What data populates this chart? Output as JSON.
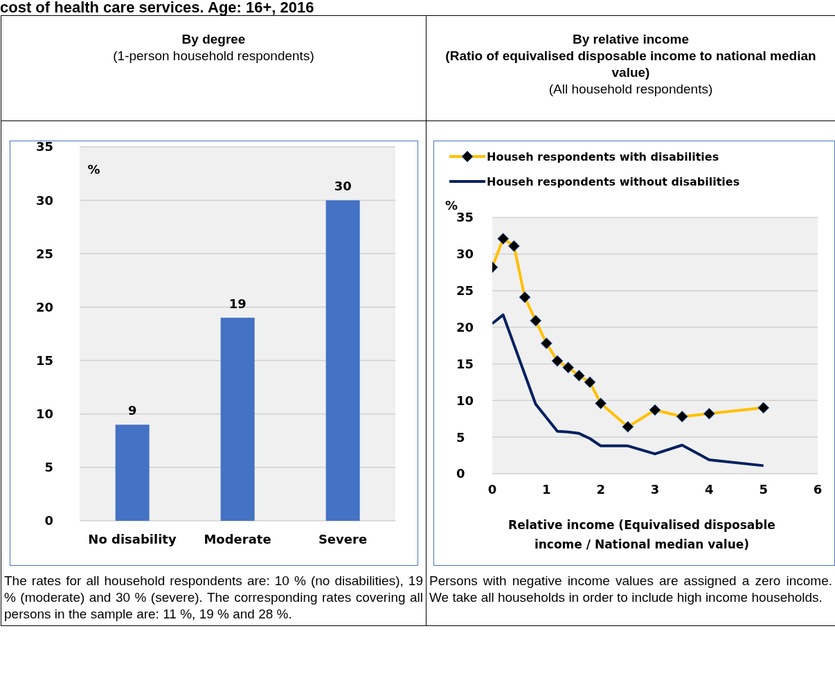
{
  "chart_data": [
    {
      "type": "bar",
      "title": "By degree",
      "subtitle": "(1-person household respondents)",
      "ylabel": "%",
      "categories": [
        "No disability",
        "Moderate",
        "Severe"
      ],
      "values": [
        9,
        19,
        30
      ],
      "color": "#4472c4",
      "data_labels": true,
      "ylim": [
        0,
        35
      ],
      "yticks": [
        0,
        5,
        10,
        15,
        20,
        25,
        30,
        35
      ],
      "grid": "y",
      "annotations": [
        "cost of health care services. Age: 16+, 2016",
        "The rates for all household respondents are: 10 % (no disabilities), 19 % (moderate) and 30 % (severe). The corresponding rates covering all persons in the sample are: 11 %, 19 % and 28 %."
      ]
    },
    {
      "type": "line",
      "title": "By relative income",
      "subtitle": "(Ratio of equivalised disposable income to national median value)",
      "ylabel": "%",
      "xlabel": "Relative income (Equivalised disposable income / National median value)",
      "legend": "top",
      "grid": "y",
      "xlim": [
        0,
        6
      ],
      "xticks": [
        0,
        1,
        2,
        3,
        4,
        5,
        6
      ],
      "ylim": [
        0,
        35
      ],
      "yticks": [
        0,
        5,
        10,
        15,
        20,
        25,
        30,
        35
      ],
      "series": [
        {
          "name": "Househ respondents with disabilities",
          "color": "#ffc000",
          "marker": "diamond",
          "x": [
            0,
            0.2,
            0.4,
            0.6,
            0.8,
            1.0,
            1.2,
            1.4,
            1.6,
            1.8,
            2.0,
            2.5,
            3.0,
            3.5,
            4.0,
            5.0
          ],
          "values": [
            28.2,
            32.1,
            31.1,
            24.1,
            20.9,
            17.8,
            15.4,
            14.5,
            13.4,
            12.5,
            9.6,
            6.4,
            8.7,
            7.8,
            8.2,
            9.0
          ]
        },
        {
          "name": "Househ respondents without disabilities",
          "color": "#002060",
          "marker": "none",
          "x": [
            0,
            0.2,
            0.8,
            1.2,
            1.4,
            1.6,
            1.8,
            2.0,
            2.5,
            3.0,
            3.5,
            4.0,
            5.0
          ],
          "values": [
            20.5,
            21.7,
            9.5,
            5.8,
            5.7,
            5.5,
            4.8,
            3.8,
            3.8,
            2.7,
            3.9,
            1.9,
            1.1
          ]
        }
      ],
      "annotations": [
        "(All household respondents)",
        "Persons with negative income values are assigned a zero income. We take all households in order to include high income households."
      ]
    }
  ]
}
